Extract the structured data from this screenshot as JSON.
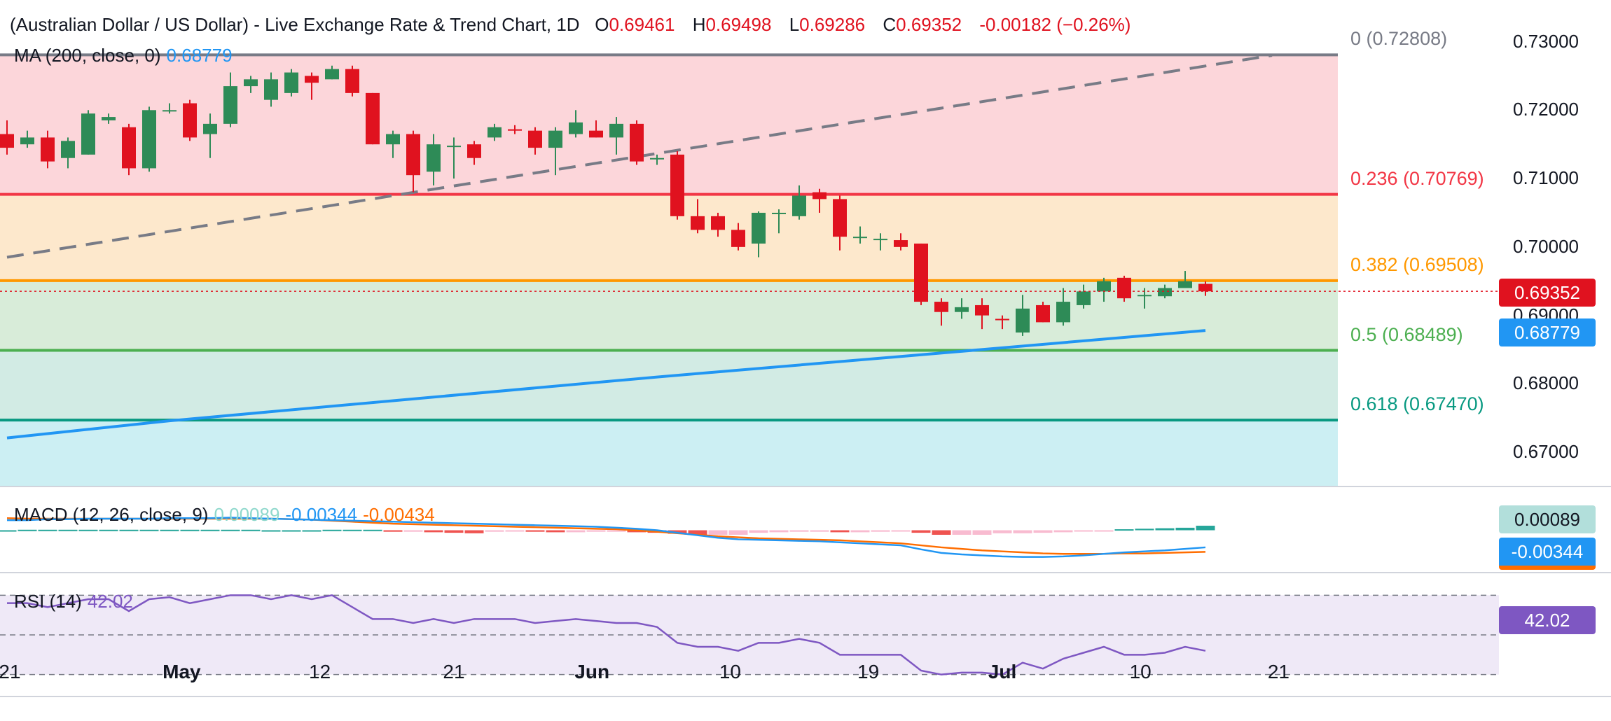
{
  "header": {
    "title": "(Australian Dollar / US Dollar) - Live Exchange Rate & Trend Chart, 1D",
    "o_label": "O",
    "o_value": "0.69461",
    "h_label": "H",
    "h_value": "0.69498",
    "l_label": "L",
    "l_value": "0.69286",
    "c_label": "C",
    "c_value": "0.69352",
    "change": "-0.00182 (−0.26%)"
  },
  "ma_legend": {
    "label": "MA (200, close, 0)",
    "value": "0.68779"
  },
  "macd_legend": {
    "label": "MACD (12, 26, close, 9)",
    "hist": "0.00089",
    "macd": "-0.00344",
    "signal": "-0.00434"
  },
  "rsi_legend": {
    "label": "RSI (14)",
    "value": "42.02"
  },
  "price_tags": {
    "last": "0.69352",
    "ma": "0.68779",
    "macd_hist": "0.00089",
    "macd_line": "-0.00344",
    "rsi": "42.02"
  },
  "colors": {
    "up": "#26a69a",
    "down": "#ef5350",
    "up_body": "#2e8b57",
    "down_body": "#e0121f",
    "ma": "#2196f3",
    "macd_signal": "#ff6d00",
    "rsi": "#7e57c2"
  },
  "chart_data": [
    {
      "type": "candlestick",
      "title": "(Australian Dollar / US Dollar) - Live Exchange Rate & Trend Chart, 1D",
      "y_ticks": [
        "0.73000",
        "0.72000",
        "0.71000",
        "0.70000",
        "0.69000",
        "0.68000",
        "0.67000"
      ],
      "ylim": [
        0.665,
        0.732
      ],
      "x_tick_labels": [
        "21",
        "May",
        "12",
        "21",
        "Jun",
        "10",
        "19",
        "Jul",
        "10",
        "21"
      ],
      "candles": [
        {
          "o": 0.7165,
          "h": 0.7185,
          "l": 0.7135,
          "c": 0.7145
        },
        {
          "o": 0.715,
          "h": 0.717,
          "l": 0.7145,
          "c": 0.716
        },
        {
          "o": 0.716,
          "h": 0.717,
          "l": 0.7115,
          "c": 0.7125
        },
        {
          "o": 0.713,
          "h": 0.716,
          "l": 0.7115,
          "c": 0.7155
        },
        {
          "o": 0.7135,
          "h": 0.72,
          "l": 0.7135,
          "c": 0.7195
        },
        {
          "o": 0.7185,
          "h": 0.7195,
          "l": 0.718,
          "c": 0.719
        },
        {
          "o": 0.7175,
          "h": 0.718,
          "l": 0.7105,
          "c": 0.7115
        },
        {
          "o": 0.7115,
          "h": 0.7205,
          "l": 0.711,
          "c": 0.72
        },
        {
          "o": 0.72,
          "h": 0.721,
          "l": 0.7195,
          "c": 0.72
        },
        {
          "o": 0.721,
          "h": 0.7215,
          "l": 0.7155,
          "c": 0.716
        },
        {
          "o": 0.7165,
          "h": 0.7195,
          "l": 0.713,
          "c": 0.718
        },
        {
          "o": 0.718,
          "h": 0.7255,
          "l": 0.7175,
          "c": 0.7235
        },
        {
          "o": 0.7235,
          "h": 0.725,
          "l": 0.7225,
          "c": 0.7245
        },
        {
          "o": 0.7215,
          "h": 0.7255,
          "l": 0.7205,
          "c": 0.7245
        },
        {
          "o": 0.7225,
          "h": 0.726,
          "l": 0.722,
          "c": 0.7255
        },
        {
          "o": 0.725,
          "h": 0.7255,
          "l": 0.7215,
          "c": 0.724
        },
        {
          "o": 0.7245,
          "h": 0.7265,
          "l": 0.7245,
          "c": 0.726
        },
        {
          "o": 0.726,
          "h": 0.7265,
          "l": 0.722,
          "c": 0.7225
        },
        {
          "o": 0.7225,
          "h": 0.7225,
          "l": 0.715,
          "c": 0.715
        },
        {
          "o": 0.715,
          "h": 0.717,
          "l": 0.713,
          "c": 0.7165
        },
        {
          "o": 0.7165,
          "h": 0.717,
          "l": 0.708,
          "c": 0.7105
        },
        {
          "o": 0.711,
          "h": 0.7165,
          "l": 0.709,
          "c": 0.715
        },
        {
          "o": 0.7148,
          "h": 0.716,
          "l": 0.71,
          "c": 0.7148
        },
        {
          "o": 0.715,
          "h": 0.7155,
          "l": 0.712,
          "c": 0.713
        },
        {
          "o": 0.716,
          "h": 0.718,
          "l": 0.7155,
          "c": 0.7175
        },
        {
          "o": 0.7172,
          "h": 0.7178,
          "l": 0.7165,
          "c": 0.717
        },
        {
          "o": 0.717,
          "h": 0.7175,
          "l": 0.7135,
          "c": 0.7145
        },
        {
          "o": 0.7145,
          "h": 0.7175,
          "l": 0.7105,
          "c": 0.717
        },
        {
          "o": 0.7165,
          "h": 0.72,
          "l": 0.716,
          "c": 0.7182
        },
        {
          "o": 0.717,
          "h": 0.7185,
          "l": 0.716,
          "c": 0.716
        },
        {
          "o": 0.716,
          "h": 0.719,
          "l": 0.7135,
          "c": 0.718
        },
        {
          "o": 0.718,
          "h": 0.7185,
          "l": 0.712,
          "c": 0.7125
        },
        {
          "o": 0.7128,
          "h": 0.7135,
          "l": 0.712,
          "c": 0.713
        },
        {
          "o": 0.7135,
          "h": 0.714,
          "l": 0.704,
          "c": 0.7045
        },
        {
          "o": 0.7045,
          "h": 0.707,
          "l": 0.702,
          "c": 0.7025
        },
        {
          "o": 0.7045,
          "h": 0.705,
          "l": 0.7015,
          "c": 0.7025
        },
        {
          "o": 0.7025,
          "h": 0.7035,
          "l": 0.6995,
          "c": 0.7
        },
        {
          "o": 0.7005,
          "h": 0.7052,
          "l": 0.6985,
          "c": 0.705
        },
        {
          "o": 0.705,
          "h": 0.7055,
          "l": 0.702,
          "c": 0.705
        },
        {
          "o": 0.7045,
          "h": 0.709,
          "l": 0.704,
          "c": 0.7075
        },
        {
          "o": 0.708,
          "h": 0.7085,
          "l": 0.705,
          "c": 0.707
        },
        {
          "o": 0.707,
          "h": 0.7075,
          "l": 0.6995,
          "c": 0.7015
        },
        {
          "o": 0.7015,
          "h": 0.703,
          "l": 0.7005,
          "c": 0.7015
        },
        {
          "o": 0.7012,
          "h": 0.702,
          "l": 0.6995,
          "c": 0.7012
        },
        {
          "o": 0.701,
          "h": 0.702,
          "l": 0.6995,
          "c": 0.7
        },
        {
          "o": 0.7005,
          "h": 0.7005,
          "l": 0.6915,
          "c": 0.692
        },
        {
          "o": 0.692,
          "h": 0.6925,
          "l": 0.6885,
          "c": 0.6905
        },
        {
          "o": 0.6905,
          "h": 0.6925,
          "l": 0.6895,
          "c": 0.6912
        },
        {
          "o": 0.6915,
          "h": 0.6925,
          "l": 0.688,
          "c": 0.69
        },
        {
          "o": 0.6895,
          "h": 0.69,
          "l": 0.688,
          "c": 0.6893
        },
        {
          "o": 0.6875,
          "h": 0.693,
          "l": 0.687,
          "c": 0.691
        },
        {
          "o": 0.6915,
          "h": 0.692,
          "l": 0.689,
          "c": 0.689
        },
        {
          "o": 0.689,
          "h": 0.694,
          "l": 0.6885,
          "c": 0.692
        },
        {
          "o": 0.6915,
          "h": 0.6945,
          "l": 0.691,
          "c": 0.6935
        },
        {
          "o": 0.6935,
          "h": 0.6955,
          "l": 0.692,
          "c": 0.695
        },
        {
          "o": 0.6955,
          "h": 0.6958,
          "l": 0.692,
          "c": 0.6925
        },
        {
          "o": 0.693,
          "h": 0.694,
          "l": 0.691,
          "c": 0.693
        },
        {
          "o": 0.6928,
          "h": 0.6945,
          "l": 0.6925,
          "c": 0.694
        },
        {
          "o": 0.694,
          "h": 0.6965,
          "l": 0.694,
          "c": 0.695
        },
        {
          "o": 0.69461,
          "h": 0.69498,
          "l": 0.69286,
          "c": 0.69352
        }
      ],
      "ma200": [
        {
          "i": 0,
          "v": 0.6721
        },
        {
          "i": 8,
          "v": 0.6746
        },
        {
          "i": 20,
          "v": 0.6778
        },
        {
          "i": 32,
          "v": 0.681
        },
        {
          "i": 44,
          "v": 0.684
        },
        {
          "i": 59,
          "v": 0.6878
        }
      ],
      "trendline": [
        {
          "i": 0,
          "v": 0.6985
        },
        {
          "i": 62,
          "v": 0.728
        }
      ],
      "fibonacci": [
        {
          "label": "0 (0.72808)",
          "level": 0.72808,
          "color": "#787b86",
          "fill": ""
        },
        {
          "label": "0.236 (0.70769)",
          "level": 0.70769,
          "color": "#f23645",
          "fill": "#fcd6da"
        },
        {
          "label": "0.382 (0.69508)",
          "level": 0.69508,
          "color": "#ff9800",
          "fill": "#fde8cc"
        },
        {
          "label": "0.5 (0.68489)",
          "level": 0.68489,
          "color": "#4caf50",
          "fill": "#d8ecd9"
        },
        {
          "label": "0.618 (0.67470)",
          "level": 0.6747,
          "color": "#089981",
          "fill": "#d2ebe4"
        },
        {
          "label": "",
          "level": 0.665,
          "color": "#00bcd4",
          "fill": "#cceff3"
        }
      ]
    },
    {
      "type": "line",
      "title": "MACD (12, 26, close, 9)",
      "ylim": [
        -0.008,
        0.008
      ],
      "series": [
        {
          "name": "MACD",
          "values": [
            0.002,
            0.002,
            0.0022,
            0.0022,
            0.0023,
            0.0023,
            0.0023,
            0.0023,
            0.0024,
            0.0024,
            0.0024,
            0.0025,
            0.0024,
            0.0023,
            0.0022,
            0.0021,
            0.002,
            0.0019,
            0.0018,
            0.0017,
            0.0016,
            0.0015,
            0.0014,
            0.0013,
            0.0012,
            0.0011,
            0.001,
            0.0009,
            0.0008,
            0.0007,
            0.0005,
            0.0003,
            0.0,
            -0.0005,
            -0.001,
            -0.0015,
            -0.0018,
            -0.0019,
            -0.002,
            -0.0021,
            -0.0022,
            -0.0024,
            -0.0026,
            -0.0028,
            -0.003,
            -0.0038,
            -0.0045,
            -0.0048,
            -0.005,
            -0.0052,
            -0.0053,
            -0.0053,
            -0.0052,
            -0.005,
            -0.0047,
            -0.0044,
            -0.0042,
            -0.004,
            -0.0037,
            -0.0034
          ]
        },
        {
          "name": "Signal",
          "values": [
            0.0024,
            0.0023,
            0.0023,
            0.0023,
            0.0023,
            0.0023,
            0.0023,
            0.0023,
            0.0023,
            0.0023,
            0.0023,
            0.0023,
            0.0023,
            0.0023,
            0.0022,
            0.0021,
            0.0019,
            0.0017,
            0.0015,
            0.0013,
            0.0012,
            0.0011,
            0.001,
            0.0009,
            0.0008,
            0.0007,
            0.0006,
            0.0005,
            0.0004,
            0.0003,
            0.0002,
            0.0,
            -0.0003,
            -0.0006,
            -0.0009,
            -0.0012,
            -0.0014,
            -0.0016,
            -0.0017,
            -0.0018,
            -0.0019,
            -0.002,
            -0.0022,
            -0.0024,
            -0.0026,
            -0.003,
            -0.0034,
            -0.0037,
            -0.004,
            -0.0042,
            -0.0044,
            -0.0046,
            -0.0047,
            -0.0047,
            -0.0047,
            -0.0046,
            -0.0046,
            -0.0045,
            -0.0044,
            -0.0043
          ]
        }
      ],
      "histogram": [
        0.0,
        0.0001,
        0.0001,
        0.0001,
        0.0001,
        0.0001,
        0.0001,
        0.0001,
        0.0001,
        0.0001,
        0.0001,
        0.0001,
        0.0001,
        0.0,
        0.0,
        0.0,
        0.0001,
        0.0001,
        0.0001,
        -0.0003,
        -0.0003,
        -0.0004,
        -0.0005,
        -0.0006,
        -0.0003,
        -0.0002,
        -0.0003,
        -0.0004,
        -0.0004,
        -0.0003,
        -0.0003,
        -0.0004,
        -0.0005,
        -0.0007,
        -0.0009,
        -0.0009,
        -0.0009,
        -0.0005,
        -0.0004,
        -0.0003,
        -0.0003,
        -0.0004,
        -0.0004,
        -0.0003,
        -0.0002,
        -0.0005,
        -0.0009,
        -0.0009,
        -0.0009,
        -0.0006,
        -0.0006,
        -0.0005,
        -0.0004,
        -0.0002,
        -0.0001,
        0.0002,
        0.0003,
        0.0004,
        0.0005,
        0.0009
      ]
    },
    {
      "type": "line",
      "title": "RSI (14)",
      "ylim": [
        20,
        80
      ],
      "bands": [
        70,
        50,
        30
      ],
      "series": [
        {
          "name": "RSI",
          "values": [
            66,
            66,
            64,
            66,
            68,
            68,
            62,
            68,
            69,
            66,
            68,
            70,
            70,
            68,
            70,
            68,
            70,
            64,
            58,
            58,
            56,
            58,
            56,
            58,
            58,
            58,
            56,
            57,
            58,
            57,
            56,
            56,
            54,
            46,
            44,
            44,
            42,
            46,
            46,
            48,
            46,
            40,
            40,
            40,
            40,
            32,
            30,
            31,
            31,
            30,
            36,
            33,
            38,
            41,
            44,
            40,
            40,
            41,
            44,
            42
          ]
        }
      ]
    }
  ]
}
